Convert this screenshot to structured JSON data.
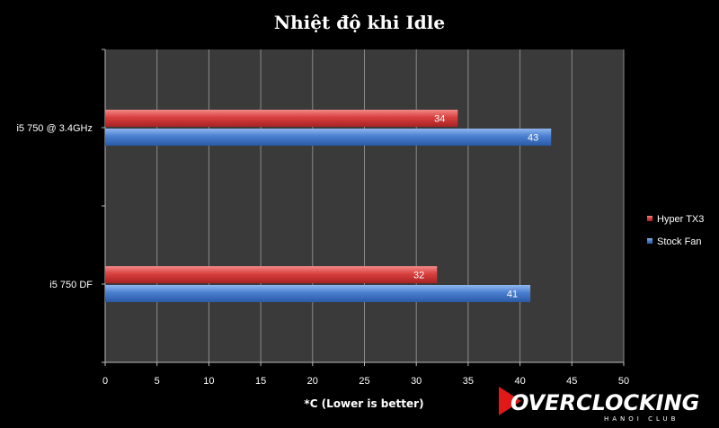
{
  "chart_data": {
    "type": "bar",
    "orientation": "horizontal",
    "title": "Nhiệt độ khi Idle",
    "xlabel": "*C (Lower is better)",
    "ylabel": "",
    "xlim": [
      0,
      50
    ],
    "xticks": [
      0,
      5,
      10,
      15,
      20,
      25,
      30,
      35,
      40,
      45,
      50
    ],
    "grid": true,
    "legend_position": "right",
    "categories": [
      "i5 750 @ 3.4GHz",
      "i5 750 DF"
    ],
    "series": [
      {
        "name": "Hyper TX3",
        "color": "#d9403f",
        "values": [
          34,
          32
        ]
      },
      {
        "name": "Stock Fan",
        "color": "#4a7fd0",
        "values": [
          43,
          41
        ]
      }
    ]
  },
  "watermark": {
    "text": "OVERCLOCKING",
    "subtext": "HANOI CLUB",
    "accent": "#e01818"
  },
  "colors": {
    "background": "#000000",
    "plot_background": "#3a3a3a",
    "gridline": "#8a8a8a"
  }
}
